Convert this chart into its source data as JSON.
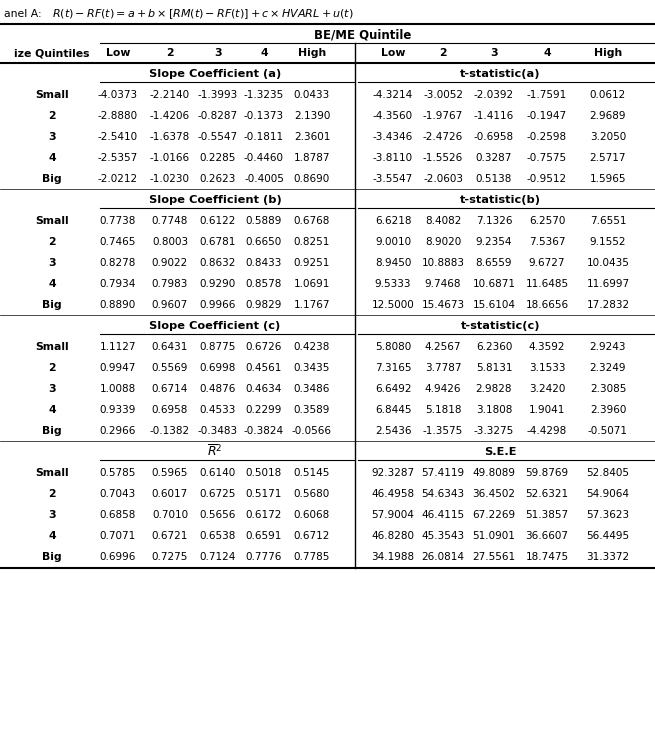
{
  "size_rows": [
    "Small",
    "2",
    "3",
    "4",
    "Big"
  ],
  "slope_a": [
    [
      -4.0373,
      -2.214,
      -1.3993,
      -1.3235,
      0.0433
    ],
    [
      -2.888,
      -1.4206,
      -0.8287,
      -0.1373,
      2.139
    ],
    [
      -2.541,
      -1.6378,
      -0.5547,
      -0.1811,
      2.3601
    ],
    [
      -2.5357,
      -1.0166,
      0.2285,
      -0.446,
      1.8787
    ],
    [
      -2.0212,
      -1.023,
      0.2623,
      -0.4005,
      0.869
    ]
  ],
  "tstat_a": [
    [
      -4.3214,
      -3.0052,
      -2.0392,
      -1.7591,
      0.0612
    ],
    [
      -4.356,
      -1.9767,
      -1.4116,
      -0.1947,
      2.9689
    ],
    [
      -3.4346,
      -2.4726,
      -0.6958,
      -0.2598,
      3.205
    ],
    [
      -3.811,
      -1.5526,
      0.3287,
      -0.7575,
      2.5717
    ],
    [
      -3.5547,
      -2.0603,
      0.5138,
      -0.9512,
      1.5965
    ]
  ],
  "slope_b": [
    [
      0.7738,
      0.7748,
      0.6122,
      0.5889,
      0.6768
    ],
    [
      0.7465,
      0.8003,
      0.6781,
      0.665,
      0.8251
    ],
    [
      0.8278,
      0.9022,
      0.8632,
      0.8433,
      0.9251
    ],
    [
      0.7934,
      0.7983,
      0.929,
      0.8578,
      1.0691
    ],
    [
      0.889,
      0.9607,
      0.9966,
      0.9829,
      1.1767
    ]
  ],
  "tstat_b": [
    [
      6.6218,
      8.4082,
      7.1326,
      6.257,
      7.6551
    ],
    [
      9.001,
      8.902,
      9.2354,
      7.5367,
      9.1552
    ],
    [
      8.945,
      10.8883,
      8.6559,
      9.6727,
      10.0435
    ],
    [
      9.5333,
      9.7468,
      10.6871,
      11.6485,
      11.6997
    ],
    [
      12.5,
      15.4673,
      15.6104,
      18.6656,
      17.2832
    ]
  ],
  "slope_c": [
    [
      1.1127,
      0.6431,
      0.8775,
      0.6726,
      0.4238
    ],
    [
      0.9947,
      0.5569,
      0.6998,
      0.4561,
      0.3435
    ],
    [
      1.0088,
      0.6714,
      0.4876,
      0.4634,
      0.3486
    ],
    [
      0.9339,
      0.6958,
      0.4533,
      0.2299,
      0.3589
    ],
    [
      0.2966,
      -0.1382,
      -0.3483,
      -0.3824,
      -0.0566
    ]
  ],
  "tstat_c": [
    [
      5.808,
      4.2567,
      6.236,
      4.3592,
      2.9243
    ],
    [
      7.3165,
      3.7787,
      5.8131,
      3.1533,
      2.3249
    ],
    [
      6.6492,
      4.9426,
      2.9828,
      3.242,
      2.3085
    ],
    [
      6.8445,
      5.1818,
      3.1808,
      1.9041,
      2.396
    ],
    [
      2.5436,
      -1.3575,
      -3.3275,
      -4.4298,
      -0.5071
    ]
  ],
  "r2": [
    [
      0.5785,
      0.5965,
      0.614,
      0.5018,
      0.5145
    ],
    [
      0.7043,
      0.6017,
      0.6725,
      0.5171,
      0.568
    ],
    [
      0.6858,
      0.701,
      0.5656,
      0.6172,
      0.6068
    ],
    [
      0.7071,
      0.6721,
      0.6538,
      0.6591,
      0.6712
    ],
    [
      0.6996,
      0.7275,
      0.7124,
      0.7776,
      0.7785
    ]
  ],
  "see": [
    [
      92.3287,
      57.4119,
      49.8089,
      59.8769,
      52.8405
    ],
    [
      46.4958,
      54.6343,
      36.4502,
      52.6321,
      54.9064
    ],
    [
      57.9004,
      46.4115,
      67.2269,
      51.3857,
      57.3623
    ],
    [
      46.828,
      45.3543,
      51.0901,
      36.6607,
      56.4495
    ],
    [
      34.1988,
      26.0814,
      27.5561,
      18.7475,
      31.3372
    ]
  ]
}
